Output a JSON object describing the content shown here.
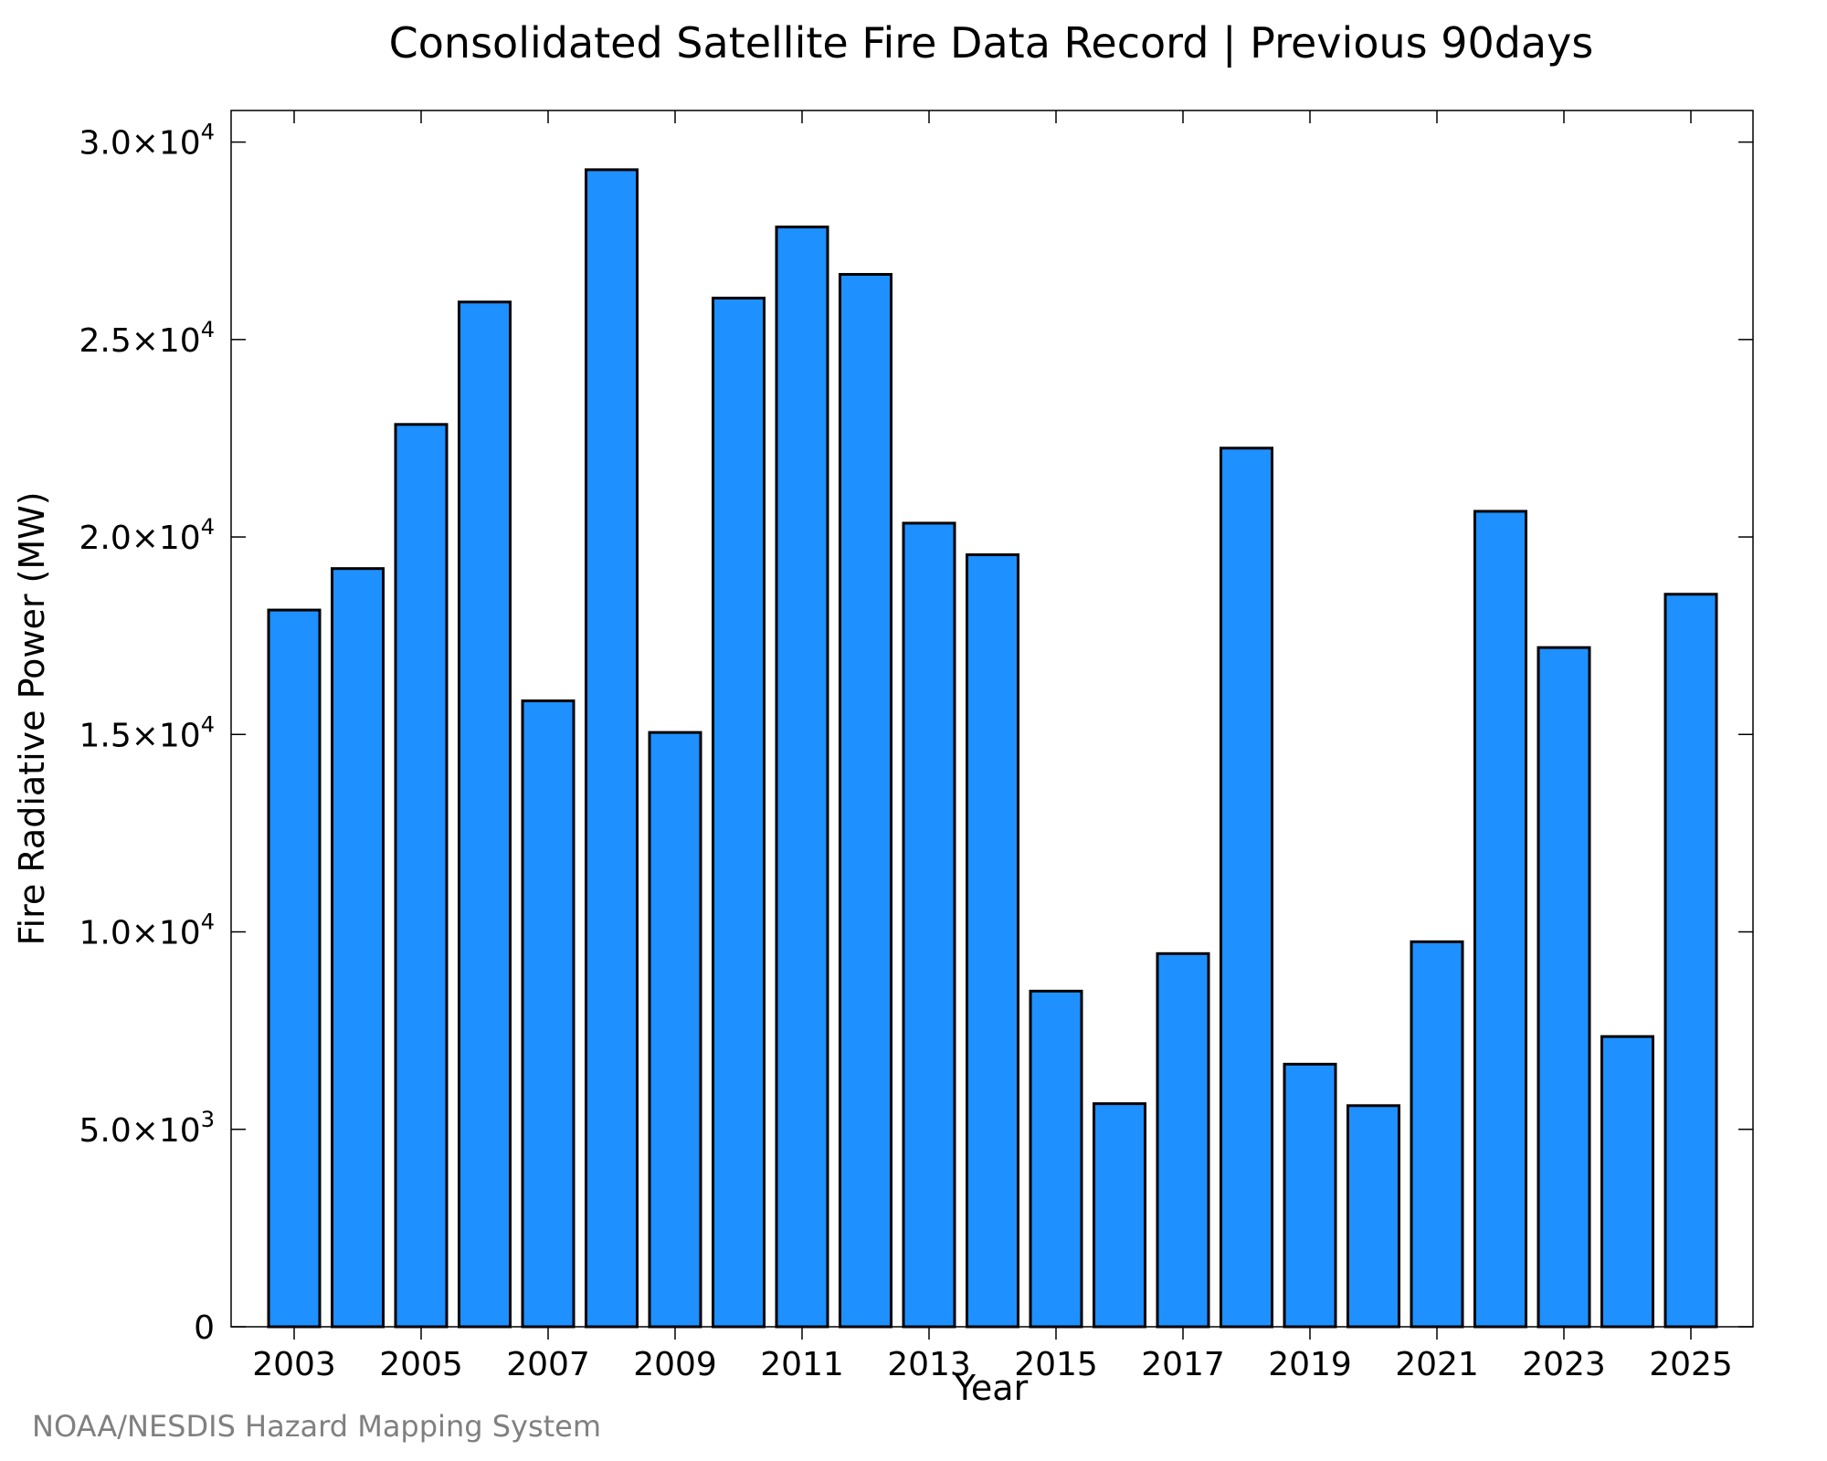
{
  "chart_data": {
    "type": "bar",
    "title": "Consolidated Satellite Fire Data Record | Previous 90days",
    "xlabel": "Year",
    "ylabel": "Fire Radiative Power (MW)",
    "credit": "NOAA/NESDIS Hazard Mapping System",
    "ylim": [
      0,
      30800
    ],
    "grid": false,
    "bar_color": "#1E90FF",
    "bar_edge_color": "#000000",
    "categories": [
      2003,
      2004,
      2005,
      2006,
      2007,
      2008,
      2009,
      2010,
      2011,
      2012,
      2013,
      2014,
      2015,
      2016,
      2017,
      2018,
      2019,
      2020,
      2021,
      2022,
      2023,
      2024,
      2025
    ],
    "values": [
      18150,
      19200,
      22850,
      25950,
      15850,
      29300,
      15050,
      26050,
      27850,
      26650,
      20350,
      19550,
      8500,
      5650,
      9450,
      22250,
      6650,
      5600,
      9750,
      20650,
      17200,
      7350,
      18550
    ],
    "x_tick_labels": [
      "2003",
      "2005",
      "2007",
      "2009",
      "2011",
      "2013",
      "2015",
      "2017",
      "2019",
      "2021",
      "2023",
      "2025"
    ],
    "y_ticks": [
      {
        "value": 0,
        "mantissa": "0",
        "exponent": ""
      },
      {
        "value": 5000,
        "mantissa": "5.0×10",
        "exponent": "3"
      },
      {
        "value": 10000,
        "mantissa": "1.0×10",
        "exponent": "4"
      },
      {
        "value": 15000,
        "mantissa": "1.5×10",
        "exponent": "4"
      },
      {
        "value": 20000,
        "mantissa": "2.0×10",
        "exponent": "4"
      },
      {
        "value": 25000,
        "mantissa": "2.5×10",
        "exponent": "4"
      },
      {
        "value": 30000,
        "mantissa": "3.0×10",
        "exponent": "4"
      }
    ]
  }
}
